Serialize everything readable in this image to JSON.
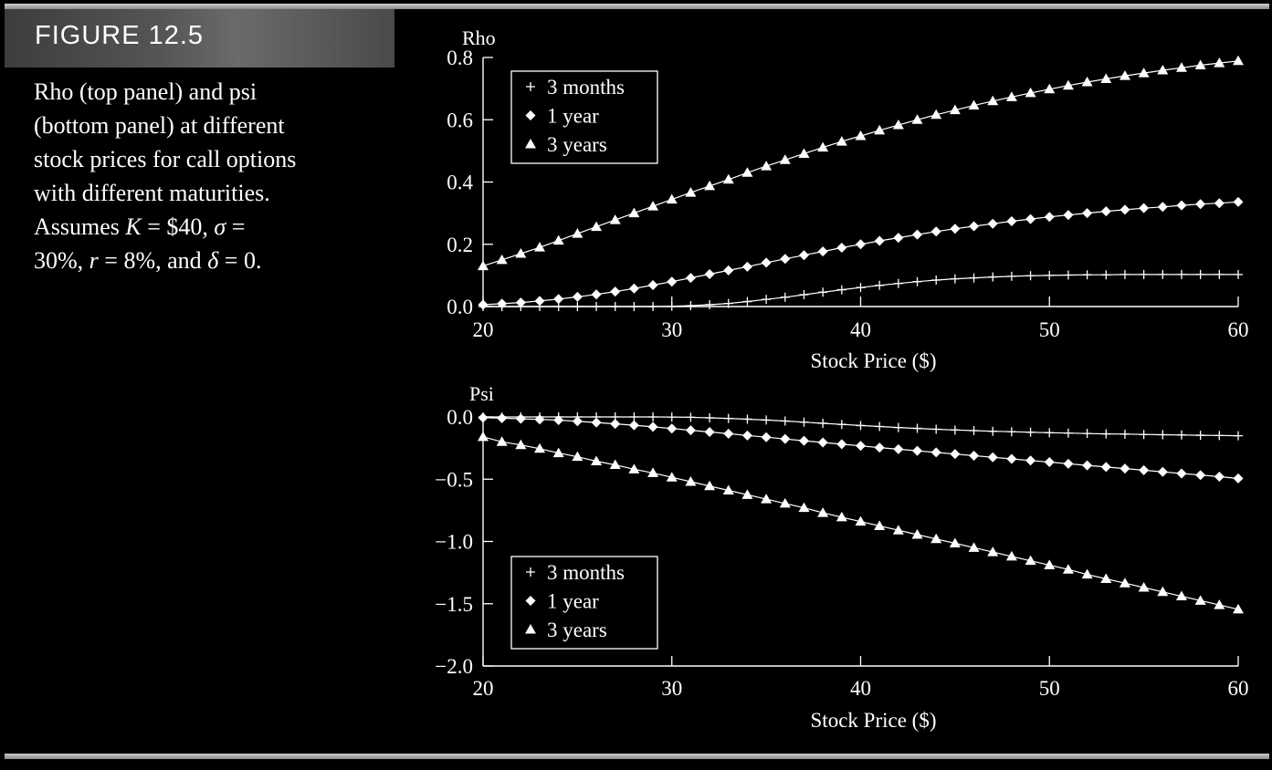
{
  "figure": {
    "label": "FIGURE 12.5",
    "caption_lines": [
      "Rho (top panel) and psi",
      "(bottom panel) at different",
      "stock prices for call options",
      "with different maturities."
    ],
    "caption_math": {
      "word": "Assumes",
      "K": "K",
      "eq": " = ",
      "K_val": "$40,",
      "sigma": "σ",
      "sigma_eq": " = ",
      "sigma_val": "30%,",
      "r": "r",
      "r_eq": " = ",
      "r_val": "8%,",
      "and": " and ",
      "delta": "δ",
      "delta_eq": " = ",
      "delta_val": "0."
    }
  },
  "colors": {
    "background": "#000000",
    "foreground": "#ffffff",
    "rule": "#b8b8b8"
  },
  "chart_data": [
    {
      "type": "line",
      "title": "",
      "ylabel": "Rho",
      "xlabel": "Stock Price ($)",
      "xlim": [
        20,
        60
      ],
      "ylim": [
        0,
        0.8
      ],
      "xticks": [
        20,
        30,
        40,
        50,
        60
      ],
      "yticks": [
        0.0,
        0.2,
        0.4,
        0.6,
        0.8
      ],
      "ytick_labels": [
        "0.0",
        "0.2",
        "0.4",
        "0.6",
        "0.8"
      ],
      "grid": false,
      "legend": "top-left",
      "x": [
        20,
        21,
        22,
        23,
        24,
        25,
        26,
        27,
        28,
        29,
        30,
        31,
        32,
        33,
        34,
        35,
        36,
        37,
        38,
        39,
        40,
        41,
        42,
        43,
        44,
        45,
        46,
        47,
        48,
        49,
        50,
        51,
        52,
        53,
        54,
        55,
        56,
        57,
        58,
        59,
        60
      ],
      "series": [
        {
          "name": "3 months",
          "marker": "plus",
          "values": [
            0.0,
            0.0,
            0.0,
            0.0,
            0.0,
            0.0,
            0.0,
            0.0,
            0.0,
            0.0,
            0.001,
            0.003,
            0.006,
            0.01,
            0.016,
            0.023,
            0.03,
            0.038,
            0.046,
            0.054,
            0.061,
            0.068,
            0.074,
            0.08,
            0.085,
            0.089,
            0.092,
            0.095,
            0.097,
            0.099,
            0.1,
            0.101,
            0.102,
            0.102,
            0.103,
            0.103,
            0.103,
            0.103,
            0.103,
            0.103,
            0.103
          ]
        },
        {
          "name": "1 year",
          "marker": "diamond",
          "values": [
            0.006,
            0.009,
            0.013,
            0.018,
            0.024,
            0.031,
            0.039,
            0.048,
            0.058,
            0.069,
            0.08,
            0.092,
            0.104,
            0.116,
            0.128,
            0.141,
            0.153,
            0.165,
            0.177,
            0.189,
            0.2,
            0.211,
            0.221,
            0.231,
            0.241,
            0.25,
            0.258,
            0.266,
            0.274,
            0.281,
            0.288,
            0.294,
            0.3,
            0.306,
            0.311,
            0.316,
            0.32,
            0.325,
            0.329,
            0.332,
            0.336
          ]
        },
        {
          "name": "3 years",
          "marker": "triangle",
          "values": [
            0.13,
            0.15,
            0.17,
            0.19,
            0.212,
            0.234,
            0.256,
            0.278,
            0.3,
            0.322,
            0.344,
            0.366,
            0.387,
            0.408,
            0.43,
            0.451,
            0.471,
            0.491,
            0.511,
            0.53,
            0.548,
            0.566,
            0.583,
            0.6,
            0.616,
            0.631,
            0.646,
            0.66,
            0.673,
            0.686,
            0.698,
            0.71,
            0.721,
            0.731,
            0.741,
            0.75,
            0.759,
            0.767,
            0.775,
            0.782,
            0.789
          ]
        }
      ]
    },
    {
      "type": "line",
      "title": "",
      "ylabel": "Psi",
      "xlabel": "Stock Price ($)",
      "xlim": [
        20,
        60
      ],
      "ylim": [
        -2.0,
        0.0
      ],
      "xticks": [
        20,
        30,
        40,
        50,
        60
      ],
      "yticks": [
        0.0,
        -0.5,
        -1.0,
        -1.5,
        -2.0
      ],
      "ytick_labels": [
        "0.0",
        "−0.5",
        "−1.0",
        "−1.5",
        "−2.0"
      ],
      "grid": false,
      "legend": "bottom-left",
      "x": [
        20,
        21,
        22,
        23,
        24,
        25,
        26,
        27,
        28,
        29,
        30,
        31,
        32,
        33,
        34,
        35,
        36,
        37,
        38,
        39,
        40,
        41,
        42,
        43,
        44,
        45,
        46,
        47,
        48,
        49,
        50,
        51,
        52,
        53,
        54,
        55,
        56,
        57,
        58,
        59,
        60
      ],
      "series": [
        {
          "name": "3 months",
          "marker": "plus",
          "values": [
            0.0,
            0.0,
            0.0,
            0.0,
            0.0,
            0.0,
            0.0,
            0.0,
            0.0,
            0.0,
            -0.001,
            -0.003,
            -0.007,
            -0.012,
            -0.018,
            -0.025,
            -0.033,
            -0.042,
            -0.051,
            -0.06,
            -0.069,
            -0.077,
            -0.085,
            -0.092,
            -0.099,
            -0.105,
            -0.11,
            -0.115,
            -0.119,
            -0.123,
            -0.127,
            -0.13,
            -0.133,
            -0.136,
            -0.138,
            -0.141,
            -0.143,
            -0.145,
            -0.147,
            -0.149,
            -0.151
          ]
        },
        {
          "name": "1 year",
          "marker": "diamond",
          "values": [
            -0.006,
            -0.01,
            -0.015,
            -0.02,
            -0.026,
            -0.035,
            -0.045,
            -0.056,
            -0.067,
            -0.08,
            -0.093,
            -0.107,
            -0.121,
            -0.135,
            -0.149,
            -0.163,
            -0.177,
            -0.191,
            -0.205,
            -0.219,
            -0.232,
            -0.246,
            -0.259,
            -0.272,
            -0.285,
            -0.298,
            -0.311,
            -0.324,
            -0.337,
            -0.35,
            -0.363,
            -0.376,
            -0.389,
            -0.402,
            -0.415,
            -0.428,
            -0.441,
            -0.454,
            -0.467,
            -0.48,
            -0.494
          ]
        },
        {
          "name": "3 years",
          "marker": "triangle",
          "values": [
            -0.16,
            -0.2,
            -0.225,
            -0.255,
            -0.29,
            -0.32,
            -0.355,
            -0.385,
            -0.42,
            -0.45,
            -0.485,
            -0.52,
            -0.555,
            -0.59,
            -0.625,
            -0.66,
            -0.695,
            -0.73,
            -0.77,
            -0.805,
            -0.84,
            -0.875,
            -0.91,
            -0.945,
            -0.98,
            -1.015,
            -1.05,
            -1.085,
            -1.12,
            -1.155,
            -1.19,
            -1.225,
            -1.265,
            -1.3,
            -1.335,
            -1.37,
            -1.405,
            -1.44,
            -1.475,
            -1.51,
            -1.545
          ]
        }
      ]
    }
  ]
}
